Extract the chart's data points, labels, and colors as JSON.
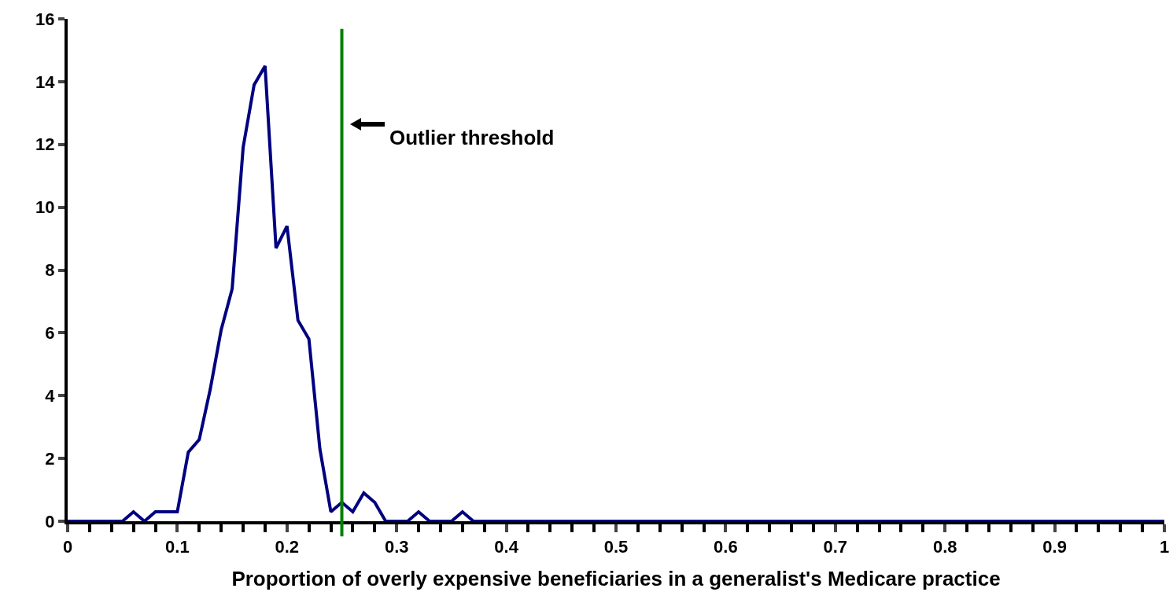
{
  "chart_data": {
    "type": "line",
    "xlabel": "Proportion of overly expensive beneficiaries in a generalist's Medicare practice",
    "x": [
      0,
      0.01,
      0.02,
      0.03,
      0.04,
      0.05,
      0.06,
      0.07,
      0.08,
      0.09,
      0.1,
      0.11,
      0.12,
      0.13,
      0.14,
      0.15,
      0.16,
      0.17,
      0.18,
      0.19,
      0.2,
      0.21,
      0.22,
      0.23,
      0.24,
      0.25,
      0.26,
      0.27,
      0.28,
      0.29,
      0.3,
      0.31,
      0.32,
      0.33,
      0.34,
      0.35,
      0.36,
      0.37,
      1
    ],
    "series": [
      {
        "color": "#000080",
        "values": [
          0,
          0,
          0,
          0,
          0,
          0,
          0.3,
          0,
          0.3,
          0.3,
          0.3,
          2.2,
          2.6,
          4.2,
          6.1,
          7.4,
          11.9,
          13.9,
          14.5,
          8.7,
          9.4,
          6.4,
          5.8,
          2.3,
          0.3,
          0.6,
          0.3,
          0.9,
          0.6,
          0,
          0,
          0,
          0.3,
          0,
          0,
          0,
          0.3,
          0,
          0
        ]
      }
    ],
    "xlim": [
      0,
      1
    ],
    "xticks": [
      0,
      0.1,
      0.2,
      0.3,
      0.4,
      0.5,
      0.6,
      0.7,
      0.8,
      0.9,
      1
    ],
    "ylim": [
      0,
      16
    ],
    "yticks": [
      0,
      2,
      4,
      6,
      8,
      10,
      12,
      14,
      16
    ],
    "ref_lines": [
      {
        "axis": "x",
        "value": 0.25,
        "label": "Outlier threshold",
        "color": "#008000"
      }
    ],
    "grid": false,
    "legend": false,
    "marker": "none",
    "line_style": "solid"
  }
}
